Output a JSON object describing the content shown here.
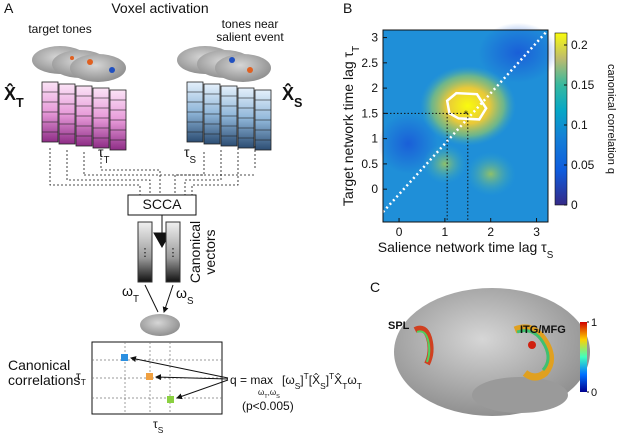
{
  "panel_a": {
    "label": "A",
    "title": "Voxel activation",
    "target_caption": "target tones",
    "salient_caption": [
      "tones near",
      "salient event"
    ],
    "matrix_t": [
      {
        "t": "X̂"
      },
      {
        "sub": "T"
      }
    ],
    "matrix_s": [
      {
        "t": "X̂"
      },
      {
        "sub": "S"
      }
    ],
    "lag_t": [
      {
        "t": "τ"
      },
      {
        "sub": "T"
      }
    ],
    "lag_s": [
      {
        "t": "τ"
      },
      {
        "sub": "S"
      }
    ],
    "method": "SCCA",
    "vectors_caption": [
      "Canonical",
      "vectors"
    ],
    "omega_t": [
      {
        "t": "ω"
      },
      {
        "sub": "T"
      }
    ],
    "omega_s": [
      {
        "t": "ω"
      },
      {
        "sub": "S"
      }
    ],
    "correlations_caption": [
      "Canonical",
      "correlations"
    ],
    "box_axis_y": [
      {
        "t": "τ"
      },
      {
        "sub": "T"
      }
    ],
    "box_axis_x": [
      {
        "t": "τ"
      },
      {
        "sub": "S"
      }
    ],
    "formula_lhs": "q = max",
    "formula_under": [
      {
        "t": "ω"
      },
      {
        "sub": "T"
      },
      {
        "t": ",ω"
      },
      {
        "sub": "S"
      }
    ],
    "formula_rhs": [
      {
        "t": "[ω"
      },
      {
        "sub": "S"
      },
      {
        "t": "]"
      },
      {
        "sup": "T"
      },
      {
        "t": "[X̂"
      },
      {
        "sub": "S"
      },
      {
        "t": "]"
      },
      {
        "sup": "T"
      },
      {
        "t": "X̂"
      },
      {
        "sub": "T"
      },
      {
        "t": "ω"
      },
      {
        "sub": "T"
      }
    ],
    "significance": "(p<0.005)"
  },
  "panel_b": {
    "label": "B",
    "xlabel": [
      {
        "t": "Salience network time lag τ"
      },
      {
        "sub": "S"
      }
    ],
    "ylabel": [
      {
        "t": "Target network time lag τ"
      },
      {
        "sub": "T"
      }
    ],
    "xlim": [
      -0.35,
      3.25
    ],
    "ylim": [
      -0.65,
      3.15
    ],
    "xticks": [
      0,
      1,
      2,
      3
    ],
    "yticks": [
      0,
      0.5,
      1,
      1.5,
      2,
      2.5,
      3
    ],
    "colorbar": {
      "label": "canonical correlation q",
      "lim": [
        0,
        0.215
      ],
      "ticks": [
        0,
        0.05,
        0.1,
        0.15,
        0.2
      ]
    }
  },
  "panel_c": {
    "label": "C",
    "regions": [
      "SPL",
      "ITG/MFG"
    ],
    "colorbar": {
      "lim": [
        0,
        1
      ],
      "ticks": [
        0,
        1
      ]
    }
  }
}
